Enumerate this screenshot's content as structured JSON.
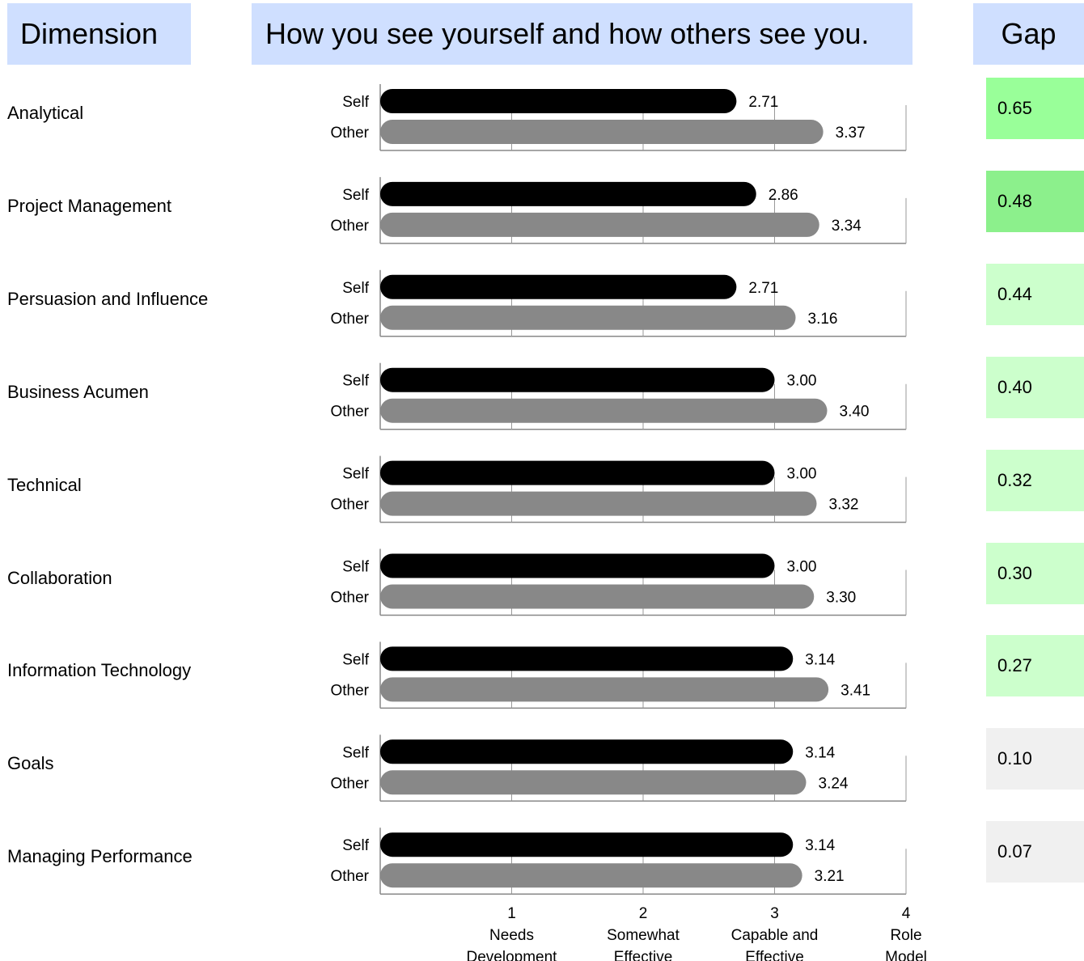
{
  "header": {
    "dimension": "Dimension",
    "title": "How you see yourself and how others see you.",
    "gap": "Gap"
  },
  "chart_data": {
    "type": "bar",
    "orientation": "horizontal",
    "title": "How you see yourself and how others see you.",
    "categories": [
      "Analytical",
      "Project Management",
      "Persuasion and Influence",
      "Business Acumen",
      "Technical",
      "Collaboration",
      "Information Technology",
      "Goals",
      "Managing Performance"
    ],
    "series": [
      {
        "name": "Self",
        "color": "#000000",
        "values": [
          2.71,
          2.86,
          2.71,
          3.0,
          3.0,
          3.0,
          3.14,
          3.14,
          3.14
        ],
        "labels": [
          "2.71",
          "2.86",
          "2.71",
          "3.00",
          "3.00",
          "3.00",
          "3.14",
          "3.14",
          "3.14"
        ]
      },
      {
        "name": "Other",
        "color": "#888888",
        "values": [
          3.37,
          3.34,
          3.16,
          3.4,
          3.32,
          3.3,
          3.41,
          3.24,
          3.21
        ],
        "labels": [
          "3.37",
          "3.34",
          "3.16",
          "3.40",
          "3.32",
          "3.30",
          "3.41",
          "3.24",
          "3.21"
        ]
      }
    ],
    "gaps": [
      "0.65",
      "0.48",
      "0.44",
      "0.40",
      "0.32",
      "0.30",
      "0.27",
      "0.10",
      "0.07"
    ],
    "gap_colors": [
      "#99ff99",
      "#8cf08c",
      "#ccffcc",
      "#ccffcc",
      "#ccffcc",
      "#ccffcc",
      "#ccffcc",
      "#f0f0f0",
      "#f0f0f0"
    ],
    "xlim": [
      0,
      4
    ],
    "x_ticks": [
      {
        "value": 1,
        "label": [
          "1",
          "Needs",
          "Development"
        ]
      },
      {
        "value": 2,
        "label": [
          "2",
          "Somewhat",
          "Effective"
        ]
      },
      {
        "value": 3,
        "label": [
          "3",
          "Capable and",
          "Effective"
        ]
      },
      {
        "value": 4,
        "label": [
          "4",
          "Role",
          "Model"
        ]
      }
    ],
    "grid": true
  }
}
